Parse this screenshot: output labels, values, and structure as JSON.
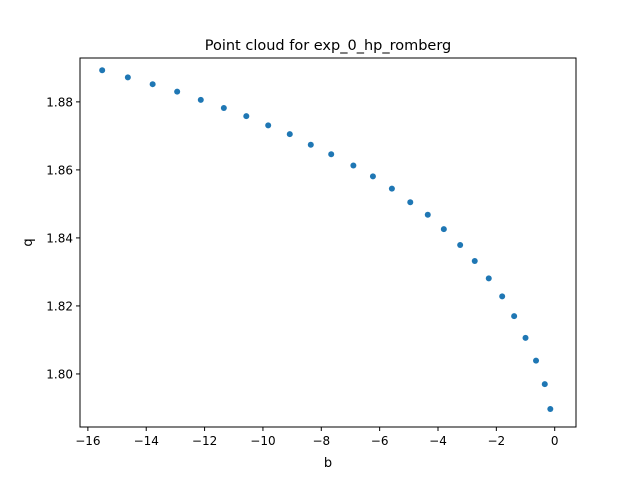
{
  "chart_data": {
    "type": "scatter",
    "title": "Point cloud for exp_0_hp_romberg",
    "xlabel": "b",
    "ylabel": "q",
    "xlim": [
      -16.27,
      0.73
    ],
    "ylim": [
      1.7844,
      1.8929
    ],
    "xticks": [
      -16,
      -14,
      -12,
      -10,
      -8,
      -6,
      -4,
      -2,
      0
    ],
    "xtick_labels": [
      "−16",
      "−14",
      "−12",
      "−10",
      "−8",
      "−6",
      "−4",
      "−2",
      "0"
    ],
    "yticks": [
      1.8,
      1.82,
      1.84,
      1.86,
      1.88
    ],
    "ytick_labels": [
      "1.80",
      "1.82",
      "1.84",
      "1.86",
      "1.88"
    ],
    "grid": false,
    "legend": false,
    "marker_color": "#1f77b4",
    "points": [
      {
        "x": -15.51,
        "y": 1.8893
      },
      {
        "x": -14.63,
        "y": 1.8872
      },
      {
        "x": -13.78,
        "y": 1.8852
      },
      {
        "x": -12.94,
        "y": 1.883
      },
      {
        "x": -12.13,
        "y": 1.8806
      },
      {
        "x": -11.34,
        "y": 1.8782
      },
      {
        "x": -10.57,
        "y": 1.8758
      },
      {
        "x": -9.82,
        "y": 1.8731
      },
      {
        "x": -9.08,
        "y": 1.8705
      },
      {
        "x": -8.36,
        "y": 1.8674
      },
      {
        "x": -7.66,
        "y": 1.8646
      },
      {
        "x": -6.9,
        "y": 1.8613
      },
      {
        "x": -6.23,
        "y": 1.8581
      },
      {
        "x": -5.58,
        "y": 1.8545
      },
      {
        "x": -4.95,
        "y": 1.8505
      },
      {
        "x": -4.35,
        "y": 1.8468
      },
      {
        "x": -3.8,
        "y": 1.8426
      },
      {
        "x": -3.24,
        "y": 1.8379
      },
      {
        "x": -2.74,
        "y": 1.8332
      },
      {
        "x": -2.26,
        "y": 1.8281
      },
      {
        "x": -1.8,
        "y": 1.8228
      },
      {
        "x": -1.39,
        "y": 1.817
      },
      {
        "x": -1.0,
        "y": 1.8106
      },
      {
        "x": -0.64,
        "y": 1.8039
      },
      {
        "x": -0.34,
        "y": 1.797
      },
      {
        "x": -0.15,
        "y": 1.7897
      }
    ]
  }
}
